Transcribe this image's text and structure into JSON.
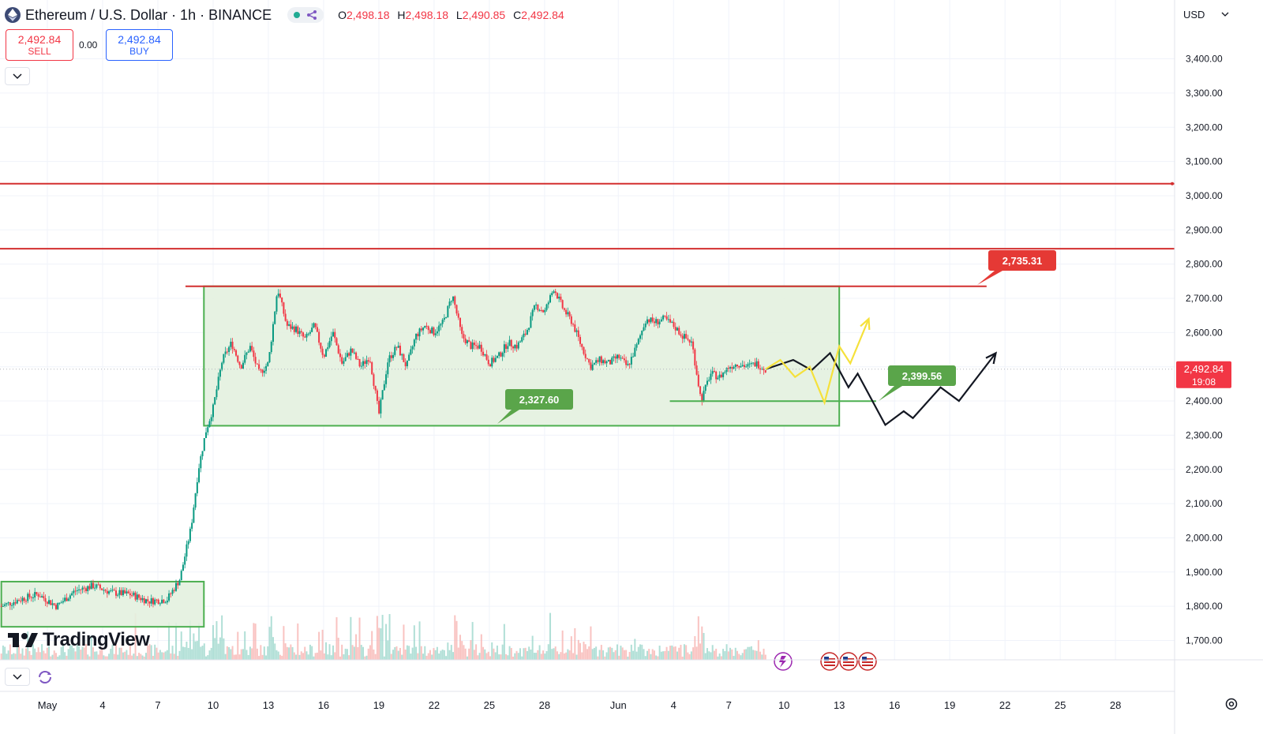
{
  "header": {
    "title": "Ethereum / U.S. Dollar · 1h · BINANCE",
    "ohlc": [
      {
        "key": "O",
        "value": "2,498.18"
      },
      {
        "key": "H",
        "value": "2,498.18"
      },
      {
        "key": "L",
        "value": "2,490.85"
      },
      {
        "key": "C",
        "value": "2,492.84"
      }
    ]
  },
  "trade": {
    "sell_price": "2,492.84",
    "sell_label": "SELL",
    "spread": "0.00",
    "buy_price": "2,492.84",
    "buy_label": "BUY"
  },
  "currency": "USD",
  "branding": "TradingView",
  "colors": {
    "up": "#089981",
    "down": "#f23645",
    "resistance": "#d32f2f",
    "support": "#4caf50",
    "zone_fill": "#e3f1df",
    "projection_black": "#131722",
    "projection_yellow": "#f5e13b",
    "label_red": "#e53935",
    "label_green": "#5aa54a"
  },
  "icons": [
    "ethereum-icon",
    "chevron-down-icon",
    "refresh-icon",
    "lightning-icon",
    "us-flag-icon",
    "settings-icon",
    "tradingview-logo-icon"
  ],
  "chart_data": {
    "type": "candlestick",
    "symbol": "ETHUSD",
    "interval": "1h",
    "exchange": "BINANCE",
    "y_axis": {
      "min": 1650,
      "max": 3430,
      "ticks": [
        "3,400.00",
        "3,300.00",
        "3,200.00",
        "3,100.00",
        "3,000.00",
        "2,900.00",
        "2,800.00",
        "2,700.00",
        "2,600.00",
        "2,500.00",
        "2,400.00",
        "2,300.00",
        "2,200.00",
        "2,100.00",
        "2,000.00",
        "1,900.00",
        "1,800.00",
        "1,700.00"
      ],
      "tick_values": [
        3400,
        3300,
        3200,
        3100,
        3000,
        2900,
        2800,
        2700,
        2600,
        2500,
        2400,
        2300,
        2200,
        2100,
        2000,
        1900,
        1800,
        1700
      ]
    },
    "x_axis": {
      "ticks": [
        {
          "label": "May",
          "day": 0
        },
        {
          "label": "4",
          "day": 3
        },
        {
          "label": "7",
          "day": 6
        },
        {
          "label": "10",
          "day": 9
        },
        {
          "label": "13",
          "day": 12
        },
        {
          "label": "16",
          "day": 15
        },
        {
          "label": "19",
          "day": 18
        },
        {
          "label": "22",
          "day": 21
        },
        {
          "label": "25",
          "day": 24
        },
        {
          "label": "28",
          "day": 27
        },
        {
          "label": "Jun",
          "day": 31
        },
        {
          "label": "4",
          "day": 34
        },
        {
          "label": "7",
          "day": 37
        },
        {
          "label": "10",
          "day": 40
        },
        {
          "label": "13",
          "day": 43
        },
        {
          "label": "16",
          "day": 46
        },
        {
          "label": "19",
          "day": 49
        },
        {
          "label": "22",
          "day": 52
        },
        {
          "label": "25",
          "day": 55
        },
        {
          "label": "28",
          "day": 58
        }
      ]
    },
    "price_path": [
      [
        -2.5,
        1800
      ],
      [
        -1.5,
        1820
      ],
      [
        -0.5,
        1835
      ],
      [
        0.5,
        1800
      ],
      [
        1.5,
        1845
      ],
      [
        2.5,
        1860
      ],
      [
        3.5,
        1840
      ],
      [
        4.5,
        1835
      ],
      [
        5.5,
        1815
      ],
      [
        6.5,
        1820
      ],
      [
        7.2,
        1880
      ],
      [
        7.8,
        2030
      ],
      [
        8.2,
        2200
      ],
      [
        8.6,
        2310
      ],
      [
        9.0,
        2380
      ],
      [
        9.5,
        2520
      ],
      [
        10.0,
        2570
      ],
      [
        10.5,
        2500
      ],
      [
        11.0,
        2560
      ],
      [
        11.5,
        2480
      ],
      [
        12.0,
        2510
      ],
      [
        12.5,
        2730
      ],
      [
        13.0,
        2620
      ],
      [
        13.5,
        2610
      ],
      [
        14.0,
        2580
      ],
      [
        14.5,
        2620
      ],
      [
        15.0,
        2530
      ],
      [
        15.5,
        2600
      ],
      [
        16.0,
        2510
      ],
      [
        16.5,
        2550
      ],
      [
        17.0,
        2500
      ],
      [
        17.5,
        2530
      ],
      [
        18.0,
        2360
      ],
      [
        18.5,
        2520
      ],
      [
        19.0,
        2560
      ],
      [
        19.5,
        2500
      ],
      [
        20.0,
        2590
      ],
      [
        20.5,
        2620
      ],
      [
        21.0,
        2600
      ],
      [
        21.5,
        2630
      ],
      [
        22.0,
        2710
      ],
      [
        22.5,
        2590
      ],
      [
        23.0,
        2560
      ],
      [
        23.5,
        2560
      ],
      [
        24.0,
        2510
      ],
      [
        24.5,
        2530
      ],
      [
        25.0,
        2570
      ],
      [
        25.5,
        2560
      ],
      [
        26.0,
        2600
      ],
      [
        26.5,
        2680
      ],
      [
        27.0,
        2660
      ],
      [
        27.5,
        2730
      ],
      [
        28.0,
        2670
      ],
      [
        28.5,
        2630
      ],
      [
        29.0,
        2560
      ],
      [
        29.5,
        2500
      ],
      [
        30.0,
        2520
      ],
      [
        30.5,
        2510
      ],
      [
        31.0,
        2530
      ],
      [
        31.5,
        2500
      ],
      [
        32.0,
        2560
      ],
      [
        32.5,
        2640
      ],
      [
        33.0,
        2630
      ],
      [
        33.5,
        2640
      ],
      [
        34.0,
        2620
      ],
      [
        34.5,
        2590
      ],
      [
        35.0,
        2570
      ],
      [
        35.5,
        2400
      ],
      [
        36.0,
        2480
      ],
      [
        36.5,
        2470
      ],
      [
        37.0,
        2500
      ],
      [
        37.5,
        2510
      ],
      [
        38.0,
        2500
      ],
      [
        38.5,
        2510
      ],
      [
        39.0,
        2493
      ]
    ],
    "annotations": [
      {
        "type": "horizontal-line",
        "value": 3035,
        "role": "resistance"
      },
      {
        "type": "horizontal-line",
        "value": 2845,
        "role": "resistance"
      },
      {
        "type": "horizontal-line",
        "value": 2735.31,
        "from_day": 7.5,
        "to_day": 51,
        "role": "range-top"
      },
      {
        "type": "rectangle",
        "from_day": 8.5,
        "to_day": 43,
        "low": 2327.6,
        "high": 2735.31,
        "role": "range"
      },
      {
        "type": "rectangle",
        "from_day": -2.5,
        "to_day": 8.5,
        "low": 1740,
        "high": 1872,
        "role": "base"
      },
      {
        "type": "horizontal-line",
        "value": 2399.56,
        "from_day": 33.8,
        "to_day": 45,
        "role": "support"
      },
      {
        "type": "label",
        "text": "2,327.60",
        "value": 2327.6,
        "color": "green"
      },
      {
        "type": "label",
        "text": "2,399.56",
        "value": 2399.56,
        "color": "green"
      },
      {
        "type": "label",
        "text": "2,735.31",
        "value": 2735.31,
        "color": "red"
      },
      {
        "type": "path",
        "color": "black",
        "points": [
          [
            39.0,
            2493
          ],
          [
            40.5,
            2520
          ],
          [
            41.5,
            2490
          ],
          [
            42.5,
            2540
          ],
          [
            43.5,
            2440
          ],
          [
            44.0,
            2480
          ],
          [
            45.5,
            2330
          ],
          [
            46.5,
            2370
          ],
          [
            47.0,
            2350
          ],
          [
            48.5,
            2440
          ],
          [
            49.5,
            2400
          ],
          [
            51.5,
            2540
          ]
        ]
      },
      {
        "type": "path",
        "color": "yellow",
        "points": [
          [
            39.0,
            2493
          ],
          [
            39.8,
            2520
          ],
          [
            40.6,
            2470
          ],
          [
            41.4,
            2500
          ],
          [
            42.2,
            2395
          ],
          [
            43.0,
            2560
          ],
          [
            43.6,
            2510
          ],
          [
            44.6,
            2640
          ]
        ]
      }
    ],
    "last_price": {
      "value": "2,492.84",
      "countdown": "19:08",
      "numeric": 2492.84
    }
  }
}
